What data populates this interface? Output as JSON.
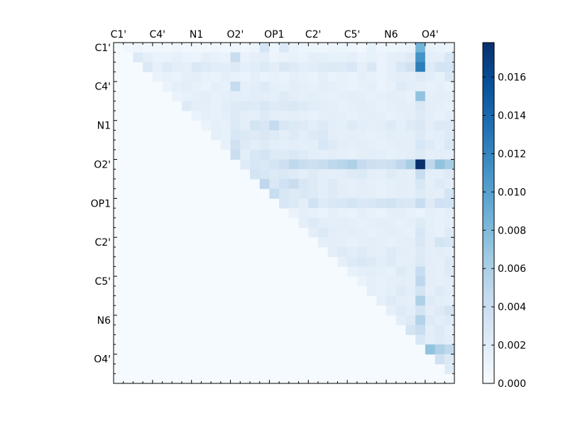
{
  "chart_data": {
    "type": "heatmap",
    "title": "",
    "xlabel": "",
    "ylabel": "",
    "n": 35,
    "tick_labels": [
      "C1'",
      "C4'",
      "N1",
      "O2'",
      "OP1",
      "C2'",
      "C5'",
      "N6",
      "O4'"
    ],
    "tick_indices": [
      0,
      4,
      8,
      12,
      16,
      20,
      24,
      28,
      32
    ],
    "colorbar": {
      "min": 0.0,
      "max": 0.0178,
      "ticks": [
        0.0,
        0.002,
        0.004,
        0.006,
        0.008,
        0.01,
        0.012,
        0.014,
        0.016
      ],
      "tick_labels": [
        "0.000",
        "0.002",
        "0.004",
        "0.006",
        "0.008",
        "0.010",
        "0.012",
        "0.014",
        "0.016"
      ],
      "colormap": [
        "#f7fbff",
        "#deebf7",
        "#c6dbef",
        "#9ecae1",
        "#6baed6",
        "#4292c6",
        "#2171b5",
        "#08519c",
        "#08306b"
      ]
    },
    "base_value": 0.0002,
    "rows": [
      {
        "r": 0,
        "vals": {
          "1": 0.0006,
          "2": 0.0008,
          "3": 0.0005,
          "4": 0.0007,
          "5": 0.0006,
          "6": 0.0008,
          "7": 0.0006,
          "8": 0.0005,
          "9": 0.0006,
          "10": 0.0007,
          "11": 0.0006,
          "12": 0.0008,
          "13": 0.0006,
          "14": 0.0009,
          "15": 0.003,
          "16": 0.0009,
          "17": 0.0025,
          "18": 0.0012,
          "19": 0.0009,
          "20": 0.0009,
          "21": 0.0008,
          "22": 0.001,
          "23": 0.0009,
          "24": 0.0008,
          "25": 0.0006,
          "26": 0.0014,
          "27": 0.0008,
          "28": 0.0009,
          "29": 0.001,
          "30": 0.0012,
          "31": 0.0085,
          "32": 0.0014,
          "33": 0.0012,
          "34": 0.0009
        }
      },
      {
        "r": 1,
        "vals": {
          "2": 0.0024,
          "3": 0.0016,
          "4": 0.0012,
          "5": 0.0012,
          "6": 0.0015,
          "7": 0.0012,
          "8": 0.001,
          "9": 0.0016,
          "10": 0.0014,
          "11": 0.0012,
          "12": 0.0042,
          "13": 0.0012,
          "14": 0.0016,
          "15": 0.0018,
          "16": 0.001,
          "17": 0.0012,
          "18": 0.0014,
          "19": 0.0012,
          "20": 0.0018,
          "21": 0.0016,
          "22": 0.0014,
          "23": 0.0014,
          "24": 0.0016,
          "25": 0.0012,
          "26": 0.0014,
          "27": 0.0012,
          "28": 0.0016,
          "29": 0.0018,
          "30": 0.0022,
          "31": 0.011,
          "32": 0.0018,
          "33": 0.0016,
          "34": 0.0028
        }
      },
      {
        "r": 2,
        "vals": {
          "3": 0.0025,
          "4": 0.0015,
          "5": 0.0022,
          "6": 0.0018,
          "7": 0.0016,
          "8": 0.0026,
          "9": 0.0022,
          "10": 0.002,
          "11": 0.0018,
          "12": 0.0022,
          "13": 0.0016,
          "14": 0.002,
          "15": 0.0024,
          "16": 0.0018,
          "17": 0.0026,
          "18": 0.0022,
          "19": 0.0018,
          "20": 0.002,
          "21": 0.0022,
          "22": 0.0024,
          "23": 0.0022,
          "24": 0.0028,
          "25": 0.0016,
          "26": 0.0026,
          "27": 0.0012,
          "28": 0.0016,
          "29": 0.0028,
          "30": 0.0035,
          "31": 0.0125,
          "32": 0.0022,
          "33": 0.0032,
          "34": 0.0032
        }
      },
      {
        "r": 3,
        "vals": {
          "4": 0.0012,
          "5": 0.0014,
          "6": 0.0012,
          "7": 0.0016,
          "8": 0.0018,
          "9": 0.0014,
          "10": 0.0012,
          "11": 0.0016,
          "12": 0.0014,
          "13": 0.0012,
          "14": 0.0016,
          "15": 0.0012,
          "16": 0.0014,
          "17": 0.0012,
          "18": 0.0016,
          "19": 0.0014,
          "20": 0.0012,
          "21": 0.0016,
          "22": 0.0012,
          "23": 0.0014,
          "24": 0.0012,
          "25": 0.0016,
          "26": 0.0014,
          "27": 0.0012,
          "28": 0.0016,
          "29": 0.0018,
          "30": 0.0016,
          "31": 0.0022,
          "32": 0.0018,
          "33": 0.0014,
          "34": 0.0026
        }
      },
      {
        "r": 4,
        "vals": {
          "5": 0.0012,
          "6": 0.0016,
          "7": 0.0018,
          "8": 0.0014,
          "9": 0.0012,
          "10": 0.0016,
          "11": 0.0014,
          "12": 0.0045,
          "13": 0.0016,
          "14": 0.0018,
          "15": 0.0022,
          "16": 0.0016,
          "17": 0.0014,
          "18": 0.0018,
          "19": 0.0016,
          "20": 0.0014,
          "21": 0.0018,
          "22": 0.0016,
          "23": 0.0014,
          "24": 0.0012,
          "25": 0.0014,
          "26": 0.0016,
          "27": 0.0012,
          "28": 0.0014,
          "29": 0.0022,
          "30": 0.0018,
          "31": 0.0016,
          "32": 0.0014,
          "33": 0.0016,
          "34": 0.0012
        }
      },
      {
        "r": 5,
        "vals": {
          "6": 0.0012,
          "7": 0.0014,
          "8": 0.0016,
          "9": 0.0018,
          "10": 0.0014,
          "11": 0.0016,
          "12": 0.0018,
          "13": 0.0016,
          "14": 0.002,
          "15": 0.0018,
          "16": 0.0016,
          "17": 0.0022,
          "18": 0.0018,
          "19": 0.0016,
          "20": 0.0018,
          "21": 0.0016,
          "22": 0.0014,
          "23": 0.0016,
          "24": 0.0018,
          "25": 0.0016,
          "26": 0.0014,
          "27": 0.0016,
          "28": 0.0018,
          "29": 0.0016,
          "30": 0.0014,
          "31": 0.0072,
          "32": 0.0016,
          "33": 0.0018,
          "34": 0.0016
        }
      },
      {
        "r": 6,
        "vals": {
          "7": 0.0022,
          "8": 0.0018,
          "9": 0.0016,
          "10": 0.0014,
          "11": 0.0018,
          "12": 0.0022,
          "13": 0.0024,
          "14": 0.0022,
          "15": 0.0028,
          "16": 0.0022,
          "17": 0.0024,
          "18": 0.0026,
          "19": 0.0022,
          "20": 0.002,
          "21": 0.0018,
          "22": 0.0016,
          "23": 0.0014,
          "24": 0.0016,
          "25": 0.0018,
          "26": 0.0016,
          "27": 0.0014,
          "28": 0.0016,
          "29": 0.0018,
          "30": 0.0016,
          "31": 0.0026,
          "32": 0.0018,
          "33": 0.0016,
          "34": 0.0014
        }
      },
      {
        "r": 7,
        "vals": {
          "8": 0.0012,
          "9": 0.0016,
          "10": 0.0014,
          "11": 0.0016,
          "12": 0.0022,
          "13": 0.0018,
          "14": 0.0016,
          "15": 0.0022,
          "16": 0.0018,
          "17": 0.0016,
          "18": 0.0018,
          "19": 0.0016,
          "20": 0.0014,
          "21": 0.0016,
          "22": 0.0018,
          "23": 0.0016,
          "24": 0.0014,
          "25": 0.0016,
          "26": 0.0018,
          "27": 0.0016,
          "28": 0.0014,
          "29": 0.0016,
          "30": 0.0018,
          "31": 0.0022,
          "32": 0.0016,
          "33": 0.0014,
          "34": 0.0018
        }
      },
      {
        "r": 8,
        "vals": {
          "9": 0.0012,
          "10": 0.0016,
          "11": 0.0014,
          "12": 0.0024,
          "13": 0.0018,
          "14": 0.0032,
          "15": 0.0028,
          "16": 0.0045,
          "17": 0.0028,
          "18": 0.0024,
          "19": 0.0022,
          "20": 0.0018,
          "21": 0.0022,
          "22": 0.0018,
          "23": 0.0016,
          "24": 0.0022,
          "25": 0.0018,
          "26": 0.0016,
          "27": 0.0018,
          "28": 0.0022,
          "29": 0.0016,
          "30": 0.0022,
          "31": 0.0026,
          "32": 0.0018,
          "33": 0.0024,
          "34": 0.0022
        }
      },
      {
        "r": 9,
        "vals": {
          "10": 0.0016,
          "11": 0.0014,
          "12": 0.0028,
          "13": 0.0024,
          "14": 0.0022,
          "15": 0.0026,
          "16": 0.0022,
          "17": 0.0018,
          "18": 0.0022,
          "19": 0.0018,
          "20": 0.0022,
          "21": 0.0026,
          "22": 0.0018,
          "23": 0.0016,
          "24": 0.0018,
          "25": 0.0016,
          "26": 0.0014,
          "27": 0.0016,
          "28": 0.0018,
          "29": 0.0016,
          "30": 0.0018,
          "31": 0.0022,
          "32": 0.0016,
          "33": 0.0018,
          "34": 0.0022
        }
      },
      {
        "r": 10,
        "vals": {
          "11": 0.0014,
          "12": 0.0035,
          "13": 0.0022,
          "14": 0.0018,
          "15": 0.0022,
          "16": 0.0018,
          "17": 0.0016,
          "18": 0.0018,
          "19": 0.0016,
          "20": 0.0018,
          "21": 0.0028,
          "22": 0.0022,
          "23": 0.0018,
          "24": 0.0016,
          "25": 0.0018,
          "26": 0.0016,
          "27": 0.0014,
          "28": 0.0016,
          "29": 0.0018,
          "30": 0.0016,
          "31": 0.0028,
          "32": 0.0022,
          "33": 0.0016,
          "34": 0.0026
        }
      },
      {
        "r": 11,
        "vals": {
          "12": 0.004,
          "13": 0.0018,
          "14": 0.0028,
          "15": 0.0032,
          "16": 0.0024,
          "17": 0.0022,
          "18": 0.0026,
          "19": 0.0022,
          "20": 0.0018,
          "21": 0.0016,
          "22": 0.0018,
          "23": 0.0016,
          "24": 0.0014,
          "25": 0.0016,
          "26": 0.0018,
          "27": 0.0016,
          "28": 0.0014,
          "29": 0.0016,
          "30": 0.0018,
          "31": 0.0022,
          "32": 0.0016,
          "33": 0.0018,
          "34": 0.0016
        }
      },
      {
        "r": 12,
        "vals": {
          "13": 0.0022,
          "14": 0.0028,
          "15": 0.0026,
          "16": 0.0032,
          "17": 0.0038,
          "18": 0.0048,
          "19": 0.0042,
          "20": 0.0038,
          "21": 0.0042,
          "22": 0.0048,
          "23": 0.0052,
          "24": 0.0058,
          "25": 0.0044,
          "26": 0.0038,
          "27": 0.0035,
          "28": 0.0038,
          "29": 0.0048,
          "30": 0.0062,
          "31": 0.0178,
          "32": 0.0048,
          "33": 0.0072,
          "34": 0.0062
        }
      },
      {
        "r": 13,
        "vals": {
          "14": 0.0032,
          "15": 0.0028,
          "16": 0.0024,
          "17": 0.0026,
          "18": 0.0022,
          "19": 0.0018,
          "20": 0.0022,
          "21": 0.0018,
          "22": 0.0016,
          "23": 0.0018,
          "24": 0.0022,
          "25": 0.0024,
          "26": 0.0018,
          "27": 0.0016,
          "28": 0.0022,
          "29": 0.0018,
          "30": 0.0016,
          "31": 0.0042,
          "32": 0.0018,
          "33": 0.0016,
          "34": 0.0022
        }
      },
      {
        "r": 14,
        "vals": {
          "15": 0.0048,
          "16": 0.0026,
          "17": 0.0036,
          "18": 0.0042,
          "19": 0.0028,
          "20": 0.0022,
          "21": 0.0018,
          "22": 0.0022,
          "23": 0.0018,
          "24": 0.0016,
          "25": 0.0018,
          "26": 0.0016,
          "27": 0.0014,
          "28": 0.0016,
          "29": 0.0018,
          "30": 0.0016,
          "31": 0.0028,
          "32": 0.0016,
          "33": 0.0022,
          "34": 0.0018
        }
      },
      {
        "r": 15,
        "vals": {
          "16": 0.0042,
          "17": 0.0028,
          "18": 0.0022,
          "19": 0.0026,
          "20": 0.0022,
          "21": 0.0018,
          "22": 0.0022,
          "23": 0.0018,
          "24": 0.0016,
          "25": 0.0018,
          "26": 0.0016,
          "27": 0.0014,
          "28": 0.0016,
          "29": 0.0018,
          "30": 0.0016,
          "31": 0.0022,
          "32": 0.0018,
          "33": 0.0016,
          "34": 0.0032
        }
      },
      {
        "r": 16,
        "vals": {
          "17": 0.0028,
          "18": 0.0024,
          "19": 0.0018,
          "20": 0.0034,
          "21": 0.0022,
          "22": 0.0026,
          "23": 0.0028,
          "24": 0.0032,
          "25": 0.0026,
          "26": 0.0028,
          "27": 0.0032,
          "28": 0.0034,
          "29": 0.0028,
          "30": 0.0026,
          "31": 0.0042,
          "32": 0.0022,
          "33": 0.0036,
          "34": 0.0034
        }
      },
      {
        "r": 17,
        "vals": {
          "18": 0.0012,
          "19": 0.0016,
          "20": 0.0014,
          "21": 0.0012,
          "22": 0.0016,
          "23": 0.0014,
          "24": 0.0012,
          "25": 0.0016,
          "26": 0.0014,
          "27": 0.0012,
          "28": 0.0016,
          "29": 0.0018,
          "30": 0.0014,
          "31": 0.0012,
          "32": 0.0016,
          "33": 0.0014,
          "34": 0.0018
        }
      },
      {
        "r": 18,
        "vals": {
          "19": 0.0016,
          "20": 0.0022,
          "21": 0.0018,
          "22": 0.0016,
          "23": 0.0018,
          "24": 0.0016,
          "25": 0.0014,
          "26": 0.0016,
          "27": 0.0018,
          "28": 0.0016,
          "29": 0.0014,
          "30": 0.0016,
          "31": 0.0022,
          "32": 0.0016,
          "33": 0.0014,
          "34": 0.0016
        }
      },
      {
        "r": 19,
        "vals": {
          "20": 0.0018,
          "21": 0.0024,
          "22": 0.0018,
          "23": 0.0016,
          "24": 0.0018,
          "25": 0.0016,
          "26": 0.0014,
          "27": 0.0016,
          "28": 0.0018,
          "29": 0.0016,
          "30": 0.0014,
          "31": 0.0028,
          "32": 0.0016,
          "33": 0.0014,
          "34": 0.0022
        }
      },
      {
        "r": 20,
        "vals": {
          "21": 0.0016,
          "22": 0.0018,
          "23": 0.0016,
          "24": 0.0014,
          "25": 0.0016,
          "26": 0.0018,
          "27": 0.0016,
          "28": 0.0014,
          "29": 0.0016,
          "30": 0.0018,
          "31": 0.0026,
          "32": 0.0018,
          "33": 0.0032,
          "34": 0.0028
        }
      },
      {
        "r": 21,
        "vals": {
          "22": 0.0018,
          "23": 0.0022,
          "24": 0.0018,
          "25": 0.0022,
          "26": 0.0018,
          "27": 0.0016,
          "28": 0.0022,
          "29": 0.0018,
          "30": 0.0016,
          "31": 0.0022,
          "32": 0.0016,
          "33": 0.0018,
          "34": 0.0016
        }
      },
      {
        "r": 22,
        "vals": {
          "23": 0.0016,
          "24": 0.0022,
          "25": 0.0026,
          "26": 0.0022,
          "27": 0.0018,
          "28": 0.0022,
          "29": 0.0016,
          "30": 0.0018,
          "31": 0.0024,
          "32": 0.0018,
          "33": 0.0016,
          "34": 0.0022
        }
      },
      {
        "r": 23,
        "vals": {
          "24": 0.0014,
          "25": 0.0016,
          "26": 0.0018,
          "27": 0.0016,
          "28": 0.0014,
          "29": 0.0022,
          "30": 0.0018,
          "31": 0.0042,
          "32": 0.0018,
          "33": 0.0016,
          "34": 0.0022
        }
      },
      {
        "r": 24,
        "vals": {
          "25": 0.0012,
          "26": 0.0016,
          "27": 0.0014,
          "28": 0.0016,
          "29": 0.0018,
          "30": 0.0016,
          "31": 0.0048,
          "32": 0.0018,
          "33": 0.0016,
          "34": 0.0018
        }
      },
      {
        "r": 25,
        "vals": {
          "26": 0.0016,
          "27": 0.0014,
          "28": 0.0016,
          "29": 0.0022,
          "30": 0.0018,
          "31": 0.0032,
          "32": 0.0016,
          "33": 0.0022,
          "34": 0.0018
        }
      },
      {
        "r": 26,
        "vals": {
          "27": 0.0016,
          "28": 0.0022,
          "29": 0.0018,
          "30": 0.0016,
          "31": 0.0058,
          "32": 0.0022,
          "33": 0.0018,
          "34": 0.0016
        }
      },
      {
        "r": 27,
        "vals": {
          "28": 0.0016,
          "29": 0.0022,
          "30": 0.0018,
          "31": 0.0032,
          "32": 0.0018,
          "33": 0.0022,
          "34": 0.0032
        }
      },
      {
        "r": 28,
        "vals": {
          "29": 0.0018,
          "30": 0.0022,
          "31": 0.0055,
          "32": 0.0022,
          "33": 0.0018,
          "34": 0.0022
        }
      },
      {
        "r": 29,
        "vals": {
          "30": 0.0032,
          "31": 0.0042,
          "32": 0.0018,
          "33": 0.0022,
          "34": 0.0016
        }
      },
      {
        "r": 30,
        "vals": {
          "31": 0.0028,
          "32": 0.0018,
          "33": 0.0022,
          "34": 0.0018
        }
      },
      {
        "r": 31,
        "vals": {
          "32": 0.0072,
          "33": 0.0058,
          "34": 0.0048
        }
      },
      {
        "r": 32,
        "vals": {
          "33": 0.0036,
          "34": 0.0024
        }
      },
      {
        "r": 33,
        "vals": {
          "34": 0.0022
        }
      },
      {
        "r": 34,
        "vals": {}
      }
    ]
  }
}
